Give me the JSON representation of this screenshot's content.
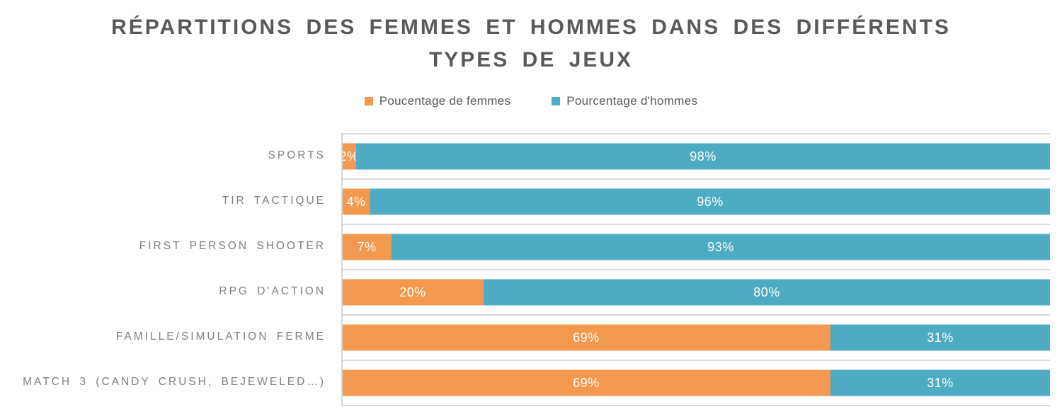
{
  "title": {
    "line1": "RÉPARTITIONS DES FEMMES ET HOMMES DANS DES DIFFÉRENTS",
    "line2": "TYPES DE JEUX"
  },
  "legend": [
    {
      "label": "Poucentage de femmes",
      "color": "#F2994F"
    },
    {
      "label": "Pourcentage d'hommes",
      "color": "#4EABC4"
    }
  ],
  "colors": {
    "femmes_orange": "#F2994F",
    "hommes_teal": "#4EABC4",
    "title_text": "#595959",
    "category_text": "#7F7F7F",
    "gridline": "#DBDBDB",
    "data_label_text": "#FFFFFF"
  },
  "chart_data": {
    "type": "bar",
    "orientation": "horizontal",
    "stacked": true,
    "stacked_total_percent": 100,
    "title": "RÉPARTITIONS DES FEMMES ET HOMMES DANS DES DIFFÉRENTS TYPES DE JEUX",
    "xlabel": "",
    "ylabel": "",
    "xlim": [
      0,
      100
    ],
    "grid": "category-boundary horizontal lines",
    "legend_position": "top",
    "data_labels": "centered inside segments, white",
    "categories": [
      "SPORTS",
      "TIR TACTIQUE",
      "FIRST PERSON SHOOTER",
      "RPG D'ACTION",
      "FAMILLE/SIMULATION FERME",
      "MATCH 3 (CANDY CRUSH, BEJEWELED…)"
    ],
    "series": [
      {
        "name": "Poucentage de femmes",
        "color": "#F2994F",
        "values": [
          2,
          4,
          7,
          20,
          69,
          69
        ],
        "labels": [
          "2%",
          "4%",
          "7%",
          "20%",
          "69%",
          "69%"
        ]
      },
      {
        "name": "Pourcentage d'hommes",
        "color": "#4EABC4",
        "values": [
          98,
          96,
          93,
          80,
          31,
          31
        ],
        "labels": [
          "98%",
          "96%",
          "93%",
          "80%",
          "31%",
          "31%"
        ]
      }
    ]
  }
}
